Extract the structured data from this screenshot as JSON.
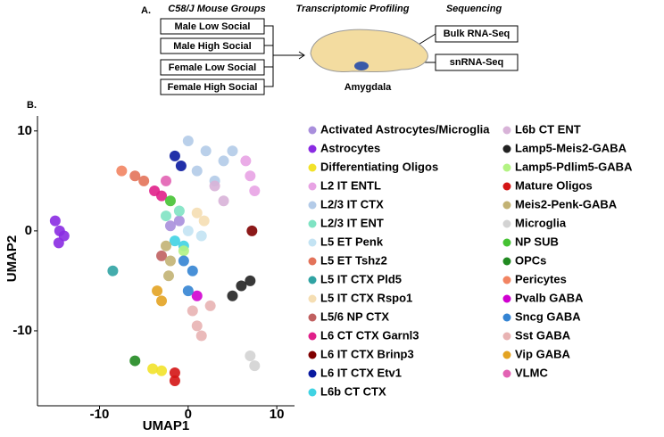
{
  "panel_a": {
    "label": "A.",
    "groups_title": "C58/J Mouse Groups",
    "profiling_title": "Transcriptomic Profiling",
    "sequencing_title": "Sequencing",
    "groups": [
      "Male Low Social",
      "Male High Social",
      "Female Low Social",
      "Female High Social"
    ],
    "methods": [
      "Bulk RNA-Seq",
      "snRNA-Seq"
    ],
    "region": "Amygdala"
  },
  "chart_data": {
    "type": "scatter",
    "panel_label": "B.",
    "xlabel": "UMAP1",
    "ylabel": "UMAP2",
    "xlim": [
      -17,
      12
    ],
    "ylim": [
      -17.5,
      11.5
    ],
    "xticks": [
      -10,
      0,
      10
    ],
    "yticks": [
      10,
      0,
      -10
    ],
    "series": [
      {
        "name": "Activated Astrocytes/Microglia",
        "color": "#a98fdc",
        "x": [
          -2,
          -1
        ],
        "y": [
          0.5,
          1
        ]
      },
      {
        "name": "Astrocytes",
        "color": "#8a2be2",
        "x": [
          -15,
          -14.5,
          -14,
          -14.6
        ],
        "y": [
          1,
          0,
          -0.5,
          -1.2
        ]
      },
      {
        "name": "Differentiating Oligos",
        "color": "#f2e22a",
        "x": [
          -4,
          -3
        ],
        "y": [
          -13.8,
          -14
        ]
      },
      {
        "name": "L2 IT ENTL",
        "color": "#e8a3e4",
        "x": [
          6.5,
          7,
          7.5
        ],
        "y": [
          7,
          5.5,
          4
        ]
      },
      {
        "name": "L2/3 IT CTX",
        "color": "#b3cbe8",
        "x": [
          0,
          2,
          4,
          5,
          3,
          1
        ],
        "y": [
          9,
          8,
          7,
          8,
          5,
          6
        ]
      },
      {
        "name": "L2/3 IT ENT",
        "color": "#7fe3c3",
        "x": [
          -2.5,
          -1
        ],
        "y": [
          1.5,
          2
        ]
      },
      {
        "name": "L5 ET Penk",
        "color": "#c3e3f3",
        "x": [
          0,
          1.5
        ],
        "y": [
          0,
          -0.5
        ]
      },
      {
        "name": "L5 ET Tshz2",
        "color": "#e3735a",
        "x": [
          -6,
          -5
        ],
        "y": [
          5.5,
          5
        ]
      },
      {
        "name": "L5 IT CTX Pld5",
        "color": "#30a3a3",
        "x": [
          -8.5
        ],
        "y": [
          -4
        ]
      },
      {
        "name": "L5 IT CTX Rspo1",
        "color": "#f5deb3",
        "x": [
          1,
          1.8
        ],
        "y": [
          1.8,
          1
        ]
      },
      {
        "name": "L5/6 NP CTX",
        "color": "#c06060",
        "x": [
          -3
        ],
        "y": [
          -2.5
        ]
      },
      {
        "name": "L6 CT CTX Garnl3",
        "color": "#e0208a",
        "x": [
          -3.8,
          -3
        ],
        "y": [
          4,
          3.5
        ]
      },
      {
        "name": "L6 IT CTX Brinp3",
        "color": "#800000",
        "x": [
          7.2
        ],
        "y": [
          0
        ]
      },
      {
        "name": "L6 IT CTX Etv1",
        "color": "#0a1aa0",
        "x": [
          -1.5,
          -0.8
        ],
        "y": [
          7.5,
          6.5
        ]
      },
      {
        "name": "L6b CT CTX",
        "color": "#40d3e3",
        "x": [
          -1.5,
          -0.5
        ],
        "y": [
          -1,
          -1.5
        ]
      },
      {
        "name": "L6b CT ENT",
        "color": "#d8b3d8",
        "x": [
          3,
          4
        ],
        "y": [
          4.5,
          3
        ]
      },
      {
        "name": "Lamp5-Meis2-GABA",
        "color": "#222222",
        "x": [
          5,
          6,
          7
        ],
        "y": [
          -6.5,
          -5.5,
          -5
        ]
      },
      {
        "name": "Lamp5-Pdlim5-GABA",
        "color": "#b3f383",
        "x": [
          -0.5
        ],
        "y": [
          -2
        ]
      },
      {
        "name": "Mature Oligos",
        "color": "#d41515",
        "x": [
          -1.5,
          -1.5
        ],
        "y": [
          -14.2,
          -15
        ]
      },
      {
        "name": "Meis2-Penk-GABA",
        "color": "#c2b274",
        "x": [
          -2.5,
          -2,
          -2.2
        ],
        "y": [
          -1.5,
          -3,
          -4.5
        ]
      },
      {
        "name": "Microglia",
        "color": "#d3d3d3",
        "x": [
          7,
          7.5
        ],
        "y": [
          -12.5,
          -13.5
        ]
      },
      {
        "name": "NP SUB",
        "color": "#45c233",
        "x": [
          -2
        ],
        "y": [
          3
        ]
      },
      {
        "name": "OPCs",
        "color": "#218a21",
        "x": [
          -6
        ],
        "y": [
          -13
        ]
      },
      {
        "name": "Pericytes",
        "color": "#f28462",
        "x": [
          -7.5
        ],
        "y": [
          6
        ]
      },
      {
        "name": "Pvalb GABA",
        "color": "#d000d0",
        "x": [
          1
        ],
        "y": [
          -6.5
        ]
      },
      {
        "name": "Sncg GABA",
        "color": "#3484d3",
        "x": [
          -0.5,
          0.5,
          0
        ],
        "y": [
          -3,
          -4,
          -6
        ]
      },
      {
        "name": "Sst GABA",
        "color": "#e8b3b3",
        "x": [
          0.5,
          1,
          1.5,
          2.5
        ],
        "y": [
          -8,
          -9.5,
          -10.5,
          -7.5
        ]
      },
      {
        "name": "Vip GABA",
        "color": "#e3a322",
        "x": [
          -3.5,
          -3
        ],
        "y": [
          -6,
          -7
        ]
      },
      {
        "name": "VLMC",
        "color": "#e262b3",
        "x": [
          -2.5
        ],
        "y": [
          5
        ]
      }
    ]
  }
}
